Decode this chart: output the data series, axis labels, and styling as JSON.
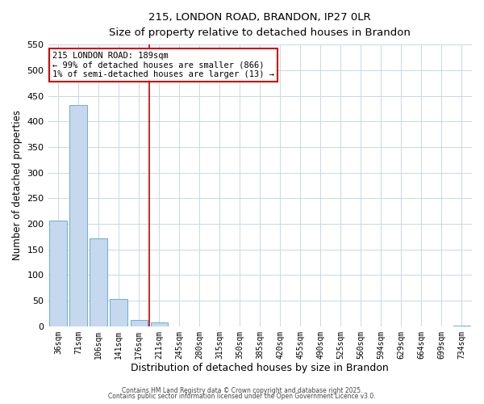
{
  "title_line1": "215, LONDON ROAD, BRANDON, IP27 0LR",
  "title_line2": "Size of property relative to detached houses in Brandon",
  "xlabel": "Distribution of detached houses by size in Brandon",
  "ylabel": "Number of detached properties",
  "bar_labels": [
    "36sqm",
    "71sqm",
    "106sqm",
    "141sqm",
    "176sqm",
    "211sqm",
    "245sqm",
    "280sqm",
    "315sqm",
    "350sqm",
    "385sqm",
    "420sqm",
    "455sqm",
    "490sqm",
    "525sqm",
    "560sqm",
    "594sqm",
    "629sqm",
    "664sqm",
    "699sqm",
    "734sqm"
  ],
  "bar_values": [
    207,
    432,
    172,
    53,
    13,
    8,
    0,
    0,
    0,
    0,
    0,
    0,
    0,
    0,
    0,
    0,
    0,
    0,
    0,
    0,
    2
  ],
  "bar_color": "#c5d8ed",
  "bar_edgecolor": "#6baed6",
  "ylim": [
    0,
    550
  ],
  "yticks": [
    0,
    50,
    100,
    150,
    200,
    250,
    300,
    350,
    400,
    450,
    500,
    550
  ],
  "vline_pos": 4.5,
  "vline_color": "#cc0000",
  "annotation_text": "215 LONDON ROAD: 189sqm\n← 99% of detached houses are smaller (866)\n1% of semi-detached houses are larger (13) →",
  "annotation_box_color": "#ffffff",
  "annotation_box_edgecolor": "#cc0000",
  "footer_line1": "Contains HM Land Registry data © Crown copyright and database right 2025.",
  "footer_line2": "Contains public sector information licensed under the Open Government Licence v3.0.",
  "background_color": "#ffffff",
  "grid_color": "#c8d8e8",
  "fig_width": 6.0,
  "fig_height": 5.0
}
